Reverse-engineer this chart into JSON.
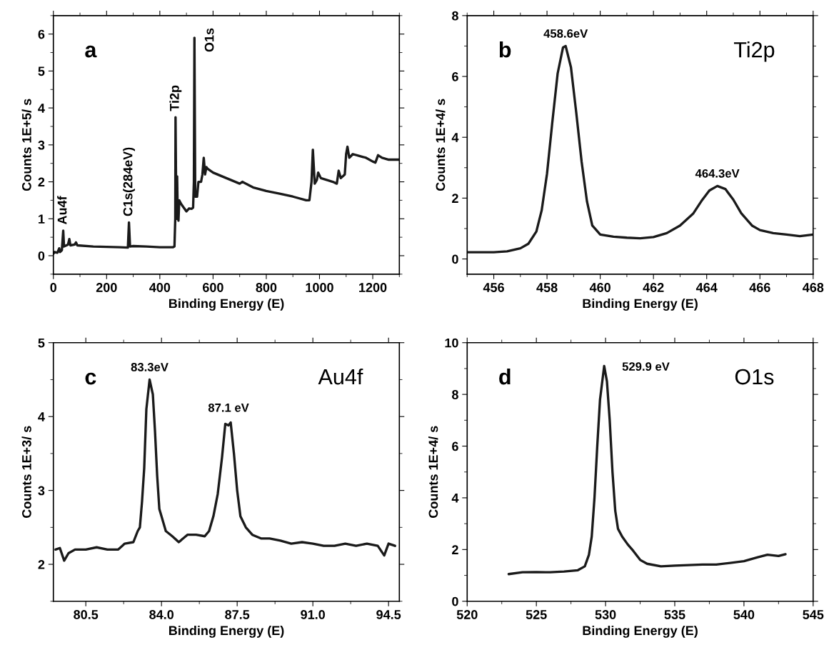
{
  "chart_data": [
    {
      "type": "line",
      "xlabel": "Binding Energy (E)",
      "ylabel": "Counts 1E+5/ s",
      "xlim": [
        0,
        1300
      ],
      "ylim": [
        -0.5,
        6.5
      ],
      "xticks": [
        0,
        200,
        400,
        600,
        800,
        1000,
        1200
      ],
      "yticks": [
        0,
        1,
        2,
        3,
        4,
        5,
        6
      ],
      "annotations": [
        "a",
        {
          "text": "Au4f",
          "x": 37,
          "y": 0.68
        },
        {
          "text": "C1s(284eV)",
          "x": 284,
          "y": 0.9
        },
        {
          "text": "Ti2p",
          "x": 459,
          "y": 3.75
        },
        {
          "text": "O1s",
          "x": 530,
          "y": 5.9
        }
      ],
      "x": [
        0,
        5,
        15,
        22,
        25,
        32,
        37,
        40,
        55,
        60,
        64,
        80,
        85,
        90,
        150,
        200,
        250,
        280,
        284,
        288,
        300,
        350,
        400,
        450,
        455,
        458,
        459,
        462,
        465,
        467,
        470,
        473,
        480,
        490,
        500,
        510,
        520,
        525,
        528,
        530,
        533,
        540,
        545,
        555,
        560,
        565,
        570,
        575,
        580,
        600,
        650,
        700,
        710,
        750,
        800,
        850,
        900,
        950,
        962,
        970,
        975,
        982,
        990,
        995,
        1005,
        1050,
        1065,
        1072,
        1080,
        1095,
        1100,
        1105,
        1112,
        1125,
        1150,
        1175,
        1200,
        1210,
        1220,
        1235,
        1260,
        1300
      ],
      "series": [
        {
          "color": "#1a1a1a",
          "values": [
            0.05,
            0.1,
            0.08,
            0.2,
            0.1,
            0.15,
            0.68,
            0.25,
            0.3,
            0.45,
            0.28,
            0.3,
            0.36,
            0.28,
            0.25,
            0.24,
            0.23,
            0.22,
            0.9,
            0.25,
            0.26,
            0.25,
            0.23,
            0.23,
            0.25,
            1.0,
            3.75,
            1.0,
            2.15,
            1.2,
            0.95,
            1.5,
            1.4,
            1.3,
            1.2,
            1.28,
            1.27,
            1.3,
            2.0,
            5.9,
            1.6,
            1.6,
            2.0,
            2.0,
            2.2,
            2.65,
            2.2,
            2.4,
            2.35,
            2.25,
            2.1,
            1.95,
            2.0,
            1.85,
            1.75,
            1.68,
            1.6,
            1.5,
            1.5,
            2.0,
            2.87,
            1.95,
            2.05,
            2.25,
            2.1,
            2.0,
            1.95,
            2.3,
            2.1,
            2.2,
            2.75,
            2.95,
            2.65,
            2.75,
            2.7,
            2.65,
            2.55,
            2.52,
            2.72,
            2.65,
            2.6,
            2.6
          ]
        }
      ]
    },
    {
      "type": "line",
      "xlabel": "Binding Energy (E)",
      "ylabel": "Counts 1E+4/ s",
      "xlim": [
        455,
        468
      ],
      "ylim": [
        -0.5,
        8
      ],
      "xticks": [
        456,
        458,
        460,
        462,
        464,
        466,
        468
      ],
      "yticks": [
        0,
        2,
        4,
        6,
        8
      ],
      "annotations": [
        "b",
        "Ti2p",
        {
          "text": "458.6eV",
          "x": 458.7,
          "y": 7.0
        },
        {
          "text": "464.3eV",
          "x": 464.4,
          "y": 2.4
        }
      ],
      "x": [
        455,
        456,
        456.5,
        457,
        457.3,
        457.6,
        457.8,
        458,
        458.2,
        458.4,
        458.6,
        458.7,
        458.9,
        459.1,
        459.3,
        459.5,
        459.7,
        460,
        460.5,
        461,
        461.5,
        462,
        462.5,
        463,
        463.5,
        463.8,
        464.1,
        464.4,
        464.7,
        465,
        465.3,
        465.7,
        466,
        466.5,
        467,
        467.5,
        468
      ],
      "series": [
        {
          "color": "#1a1a1a",
          "values": [
            0.22,
            0.22,
            0.25,
            0.35,
            0.5,
            0.9,
            1.6,
            2.8,
            4.5,
            6.1,
            6.95,
            7.0,
            6.3,
            4.8,
            3.2,
            1.9,
            1.1,
            0.8,
            0.73,
            0.7,
            0.68,
            0.72,
            0.85,
            1.1,
            1.5,
            1.9,
            2.25,
            2.4,
            2.3,
            1.95,
            1.5,
            1.1,
            0.95,
            0.85,
            0.8,
            0.75,
            0.8
          ]
        }
      ]
    },
    {
      "type": "line",
      "xlabel": "Binding Energy (E)",
      "ylabel": "Counts 1E+3/ s",
      "xlim": [
        79.0,
        95.0
      ],
      "ylim": [
        1.5,
        5
      ],
      "xticks": [
        {
          "value": 80.5,
          "label": "80.5"
        },
        {
          "value": 84,
          "label": "84.0"
        },
        {
          "value": 87.5,
          "label": "87.5"
        },
        {
          "value": 91,
          "label": "91.0"
        },
        {
          "value": 94.5,
          "label": "94.5"
        }
      ],
      "yticks": [
        2,
        3,
        4,
        5
      ],
      "annotations": [
        "c",
        "Au4f",
        {
          "text": "83.3eV",
          "x": 83.45,
          "y": 4.5
        },
        {
          "text": "87.1 eV",
          "x": 87.1,
          "y": 3.95
        }
      ],
      "x": [
        79.1,
        79.3,
        79.5,
        79.7,
        80.0,
        80.5,
        81.0,
        81.5,
        82.0,
        82.3,
        82.7,
        82.9,
        83.0,
        83.1,
        83.2,
        83.3,
        83.45,
        83.6,
        83.7,
        83.8,
        83.9,
        84.0,
        84.2,
        84.5,
        84.8,
        85.2,
        85.6,
        86.0,
        86.2,
        86.4,
        86.6,
        86.8,
        86.95,
        87.1,
        87.2,
        87.35,
        87.5,
        87.65,
        87.9,
        88.2,
        88.6,
        89.0,
        89.5,
        90.0,
        90.5,
        91.0,
        91.5,
        92.0,
        92.5,
        93.0,
        93.5,
        94.0,
        94.3,
        94.5,
        94.8
      ],
      "series": [
        {
          "color": "#1a1a1a",
          "values": [
            2.2,
            2.22,
            2.05,
            2.15,
            2.2,
            2.2,
            2.23,
            2.2,
            2.2,
            2.28,
            2.3,
            2.45,
            2.5,
            2.85,
            3.3,
            4.1,
            4.5,
            4.3,
            3.8,
            3.2,
            2.75,
            2.65,
            2.45,
            2.38,
            2.3,
            2.4,
            2.4,
            2.38,
            2.45,
            2.65,
            2.95,
            3.45,
            3.9,
            3.88,
            3.92,
            3.5,
            3.0,
            2.65,
            2.5,
            2.4,
            2.35,
            2.35,
            2.32,
            2.28,
            2.3,
            2.28,
            2.25,
            2.25,
            2.28,
            2.25,
            2.28,
            2.25,
            2.12,
            2.28,
            2.25
          ]
        }
      ]
    },
    {
      "type": "line",
      "xlabel": "Binding Energy (E)",
      "ylabel": "Counts 1E+4/ s",
      "xlim": [
        520,
        545
      ],
      "ylim": [
        0,
        10
      ],
      "xticks": [
        520,
        525,
        530,
        535,
        540,
        545
      ],
      "yticks": [
        0,
        2,
        4,
        6,
        8,
        10
      ],
      "annotations": [
        "d",
        "O1s",
        {
          "text": "529.9 eV",
          "x": 529.9,
          "y": 9.1
        }
      ],
      "x": [
        523,
        524,
        525,
        526,
        527,
        528,
        528.5,
        528.8,
        529,
        529.2,
        529.4,
        529.6,
        529.9,
        530.1,
        530.3,
        530.5,
        530.7,
        530.9,
        531.2,
        531.6,
        532,
        532.5,
        533,
        534,
        535,
        536,
        537,
        538,
        539,
        540,
        541,
        541.7,
        542.5,
        543
      ],
      "series": [
        {
          "color": "#1a1a1a",
          "values": [
            1.05,
            1.12,
            1.13,
            1.12,
            1.15,
            1.2,
            1.35,
            1.8,
            2.5,
            4.0,
            6.0,
            7.8,
            9.1,
            8.5,
            7.0,
            5.0,
            3.5,
            2.8,
            2.5,
            2.2,
            1.95,
            1.6,
            1.45,
            1.35,
            1.38,
            1.4,
            1.42,
            1.42,
            1.48,
            1.55,
            1.7,
            1.8,
            1.75,
            1.82
          ]
        }
      ]
    }
  ]
}
